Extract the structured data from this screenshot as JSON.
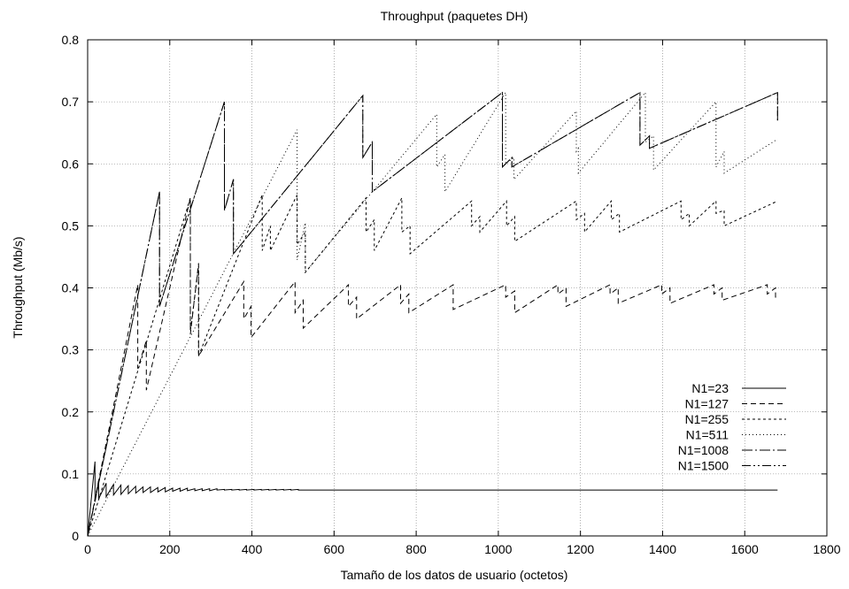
{
  "chart_data": {
    "type": "line",
    "title": "Throughput (paquetes DH)",
    "xlabel": "Tamaño de los datos de usuario (octetos)",
    "ylabel": "Throughput (Mb/s)",
    "xlim": [
      0,
      1800
    ],
    "ylim": [
      0,
      0.8
    ],
    "x_ticks": [
      0,
      200,
      400,
      600,
      800,
      1000,
      1200,
      1400,
      1600,
      1800
    ],
    "y_ticks": [
      0,
      0.1,
      0.2,
      0.3,
      0.4,
      0.5,
      0.6,
      0.7,
      0.8
    ],
    "x_tick_labels": [
      "0",
      "200",
      "400",
      "600",
      "800",
      "1000",
      "1200",
      "1400",
      "1600",
      "1800"
    ],
    "y_tick_labels": [
      "0",
      "0.1",
      "0.2",
      "0.3",
      "0.4",
      "0.5",
      "0.6",
      "0.7",
      "0.8"
    ],
    "grid": true,
    "legend_position": "bottom-right",
    "series": [
      {
        "name": "N1=23",
        "dash": "",
        "x": [
          0,
          18,
          18,
          27,
          27,
          45,
          45,
          63,
          63,
          81,
          81,
          99,
          99,
          117,
          117,
          135,
          135,
          153,
          153,
          171,
          171,
          189,
          189,
          207,
          207,
          225,
          225,
          243,
          243,
          261,
          261,
          279,
          279,
          297,
          297,
          315,
          315,
          333,
          333,
          351,
          351,
          369,
          369,
          387,
          387,
          405,
          405,
          423,
          423,
          441,
          441,
          459,
          459,
          477,
          477,
          495,
          495,
          513,
          513,
          1680
        ],
        "y": [
          0,
          0.12,
          0.055,
          0.09,
          0.06,
          0.085,
          0.063,
          0.083,
          0.066,
          0.082,
          0.067,
          0.081,
          0.068,
          0.08,
          0.069,
          0.079,
          0.07,
          0.079,
          0.07,
          0.078,
          0.071,
          0.078,
          0.071,
          0.077,
          0.072,
          0.077,
          0.072,
          0.077,
          0.073,
          0.076,
          0.073,
          0.076,
          0.073,
          0.076,
          0.073,
          0.076,
          0.074,
          0.075,
          0.074,
          0.075,
          0.074,
          0.075,
          0.074,
          0.075,
          0.074,
          0.075,
          0.074,
          0.075,
          0.074,
          0.075,
          0.074,
          0.075,
          0.074,
          0.075,
          0.074,
          0.075,
          0.074,
          0.075,
          0.074,
          0.074
        ]
      },
      {
        "name": "N1=127",
        "dash": "6,4",
        "x": [
          0,
          122,
          122,
          143,
          143,
          250,
          250,
          270,
          270,
          380,
          380,
          398,
          398,
          505,
          505,
          525,
          525,
          635,
          635,
          655,
          655,
          762,
          762,
          782,
          782,
          890,
          890,
          1018,
          1018,
          1040,
          1040,
          1145,
          1145,
          1165,
          1165,
          1272,
          1272,
          1292,
          1292,
          1398,
          1398,
          1418,
          1418,
          1525,
          1525,
          1545,
          1545,
          1655,
          1655,
          1675,
          1675,
          1680
        ],
        "y": [
          0,
          0.405,
          0.27,
          0.315,
          0.235,
          0.545,
          0.325,
          0.44,
          0.29,
          0.41,
          0.35,
          0.37,
          0.32,
          0.41,
          0.36,
          0.38,
          0.335,
          0.405,
          0.37,
          0.385,
          0.35,
          0.405,
          0.375,
          0.39,
          0.36,
          0.405,
          0.365,
          0.405,
          0.385,
          0.395,
          0.36,
          0.405,
          0.39,
          0.4,
          0.37,
          0.405,
          0.39,
          0.4,
          0.375,
          0.405,
          0.39,
          0.4,
          0.375,
          0.405,
          0.39,
          0.4,
          0.38,
          0.405,
          0.39,
          0.4,
          0.385,
          0.385
        ]
      },
      {
        "name": "N1=255",
        "dash": "3,3",
        "x": [
          0,
          250,
          250,
          270,
          270,
          425,
          425,
          445,
          445,
          510,
          510,
          530,
          530,
          678,
          678,
          698,
          698,
          765,
          765,
          785,
          785,
          935,
          935,
          955,
          955,
          1020,
          1020,
          1040,
          1040,
          1190,
          1190,
          1210,
          1210,
          1275,
          1275,
          1295,
          1295,
          1445,
          1445,
          1465,
          1465,
          1530,
          1530,
          1550,
          1550,
          1680
        ],
        "y": [
          0,
          0.545,
          0.33,
          0.435,
          0.29,
          0.55,
          0.46,
          0.5,
          0.46,
          0.55,
          0.47,
          0.49,
          0.425,
          0.545,
          0.49,
          0.51,
          0.46,
          0.545,
          0.49,
          0.5,
          0.455,
          0.54,
          0.5,
          0.515,
          0.49,
          0.54,
          0.5,
          0.515,
          0.475,
          0.54,
          0.51,
          0.52,
          0.49,
          0.54,
          0.51,
          0.52,
          0.49,
          0.54,
          0.51,
          0.52,
          0.5,
          0.54,
          0.52,
          0.525,
          0.5,
          0.54
        ]
      },
      {
        "name": "N1=511",
        "dash": "1,3",
        "x": [
          0,
          510,
          510,
          530,
          530,
          850,
          850,
          870,
          870,
          1018,
          1018,
          1038,
          1038,
          1190,
          1190,
          1195,
          1195,
          1358,
          1358,
          1378,
          1378,
          1530,
          1530,
          1550,
          1550,
          1680
        ],
        "y": [
          0,
          0.655,
          0.445,
          0.505,
          0.425,
          0.68,
          0.595,
          0.615,
          0.555,
          0.715,
          0.6,
          0.61,
          0.575,
          0.685,
          0.62,
          0.625,
          0.585,
          0.715,
          0.635,
          0.645,
          0.59,
          0.7,
          0.595,
          0.62,
          0.585,
          0.64
        ]
      },
      {
        "name": "N1=1008",
        "dash": "12,3,2,3",
        "x": [
          0,
          175,
          175,
          333,
          333,
          355,
          355,
          670,
          670,
          693,
          693,
          1010,
          1010,
          1033,
          1033,
          1345,
          1345,
          1368,
          1368,
          1680,
          1680
        ],
        "y": [
          0,
          0.555,
          0.37,
          0.7,
          0.525,
          0.575,
          0.455,
          0.71,
          0.61,
          0.635,
          0.555,
          0.715,
          0.595,
          0.61,
          0.595,
          0.715,
          0.63,
          0.645,
          0.625,
          0.715,
          0.67
        ]
      },
      {
        "name": "N1=1500",
        "dash": "10,3,2,3,2,3",
        "x": [
          0,
          175,
          175,
          333,
          333,
          355,
          355,
          670,
          670,
          693,
          693,
          1010,
          1010,
          1033,
          1033,
          1345,
          1345,
          1368,
          1368,
          1680,
          1680
        ],
        "y": [
          0,
          0.555,
          0.37,
          0.7,
          0.525,
          0.575,
          0.455,
          0.71,
          0.61,
          0.635,
          0.555,
          0.715,
          0.595,
          0.61,
          0.595,
          0.715,
          0.63,
          0.645,
          0.625,
          0.715,
          0.67
        ]
      }
    ]
  }
}
